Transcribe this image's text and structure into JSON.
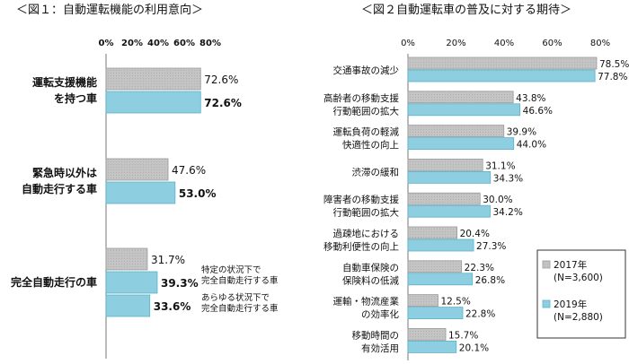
{
  "chart_data": [
    {
      "type": "bar",
      "orientation": "horizontal",
      "title": "＜図１：自動運転機能の利用意向＞",
      "xlim": [
        0,
        80
      ],
      "xticks": [
        "0%",
        "20%",
        "40%",
        "60%",
        "80%"
      ],
      "categories": [
        [
          "運転支援機能",
          "を持つ車"
        ],
        [
          "緊急時以外は",
          "自動走行する車"
        ],
        [
          "完全自動走行の車"
        ]
      ],
      "groups": [
        {
          "values": [
            72.6,
            72.6
          ],
          "labels": [
            "72.6%",
            "72.6%"
          ]
        },
        {
          "values": [
            47.6,
            53.0
          ],
          "labels": [
            "47.6%",
            "53.0%"
          ]
        },
        {
          "values": [
            31.7,
            39.3,
            33.6
          ],
          "labels": [
            "31.7%",
            "39.3%",
            "33.6%"
          ]
        }
      ],
      "annotations": [
        [
          "特定の状況下で",
          "完全自動走行する車"
        ],
        [
          "あらゆる状況下で",
          "完全自動走行する車"
        ]
      ],
      "colors": {
        "gray": "#c4c4c4",
        "blue": "#8dcfe0",
        "grayEdge": "#9b9b9b",
        "blueEdge": "#5fb1c8"
      },
      "grid": false
    },
    {
      "type": "bar",
      "orientation": "horizontal",
      "title": "＜図２自動運転車の普及に対する期待＞",
      "xlim": [
        0,
        80
      ],
      "xticks": [
        "0%",
        "20%",
        "40%",
        "60%",
        "80%"
      ],
      "categories": [
        [
          "交通事故の減少"
        ],
        [
          "高齢者の移動支援",
          "行動範囲の拡大"
        ],
        [
          "運転負荷の軽減",
          "快適性の向上"
        ],
        [
          "渋滞の緩和"
        ],
        [
          "障害者の移動支援",
          "行動範囲の拡大"
        ],
        [
          "過疎地における",
          "移動利便性の向上"
        ],
        [
          "自動車保険の",
          "保険料の低減"
        ],
        [
          "運輸・物流産業",
          "の効率化"
        ],
        [
          "移動時間の",
          "有効活用"
        ]
      ],
      "series": [
        {
          "name": [
            "2017年",
            "(N=3,600)"
          ],
          "values": [
            78.5,
            43.8,
            39.9,
            31.1,
            30.0,
            20.4,
            22.3,
            12.5,
            15.7
          ]
        },
        {
          "name": [
            "2019年",
            "(N=2,880)"
          ],
          "values": [
            77.8,
            46.6,
            44.0,
            34.3,
            34.2,
            27.3,
            26.8,
            22.8,
            20.1
          ]
        }
      ],
      "legend": "bottom-right",
      "colors": {
        "gray": "#c4c4c4",
        "blue": "#8dcfe0",
        "grayEdge": "#9b9b9b",
        "blueEdge": "#5fb1c8"
      },
      "grid": false
    }
  ]
}
